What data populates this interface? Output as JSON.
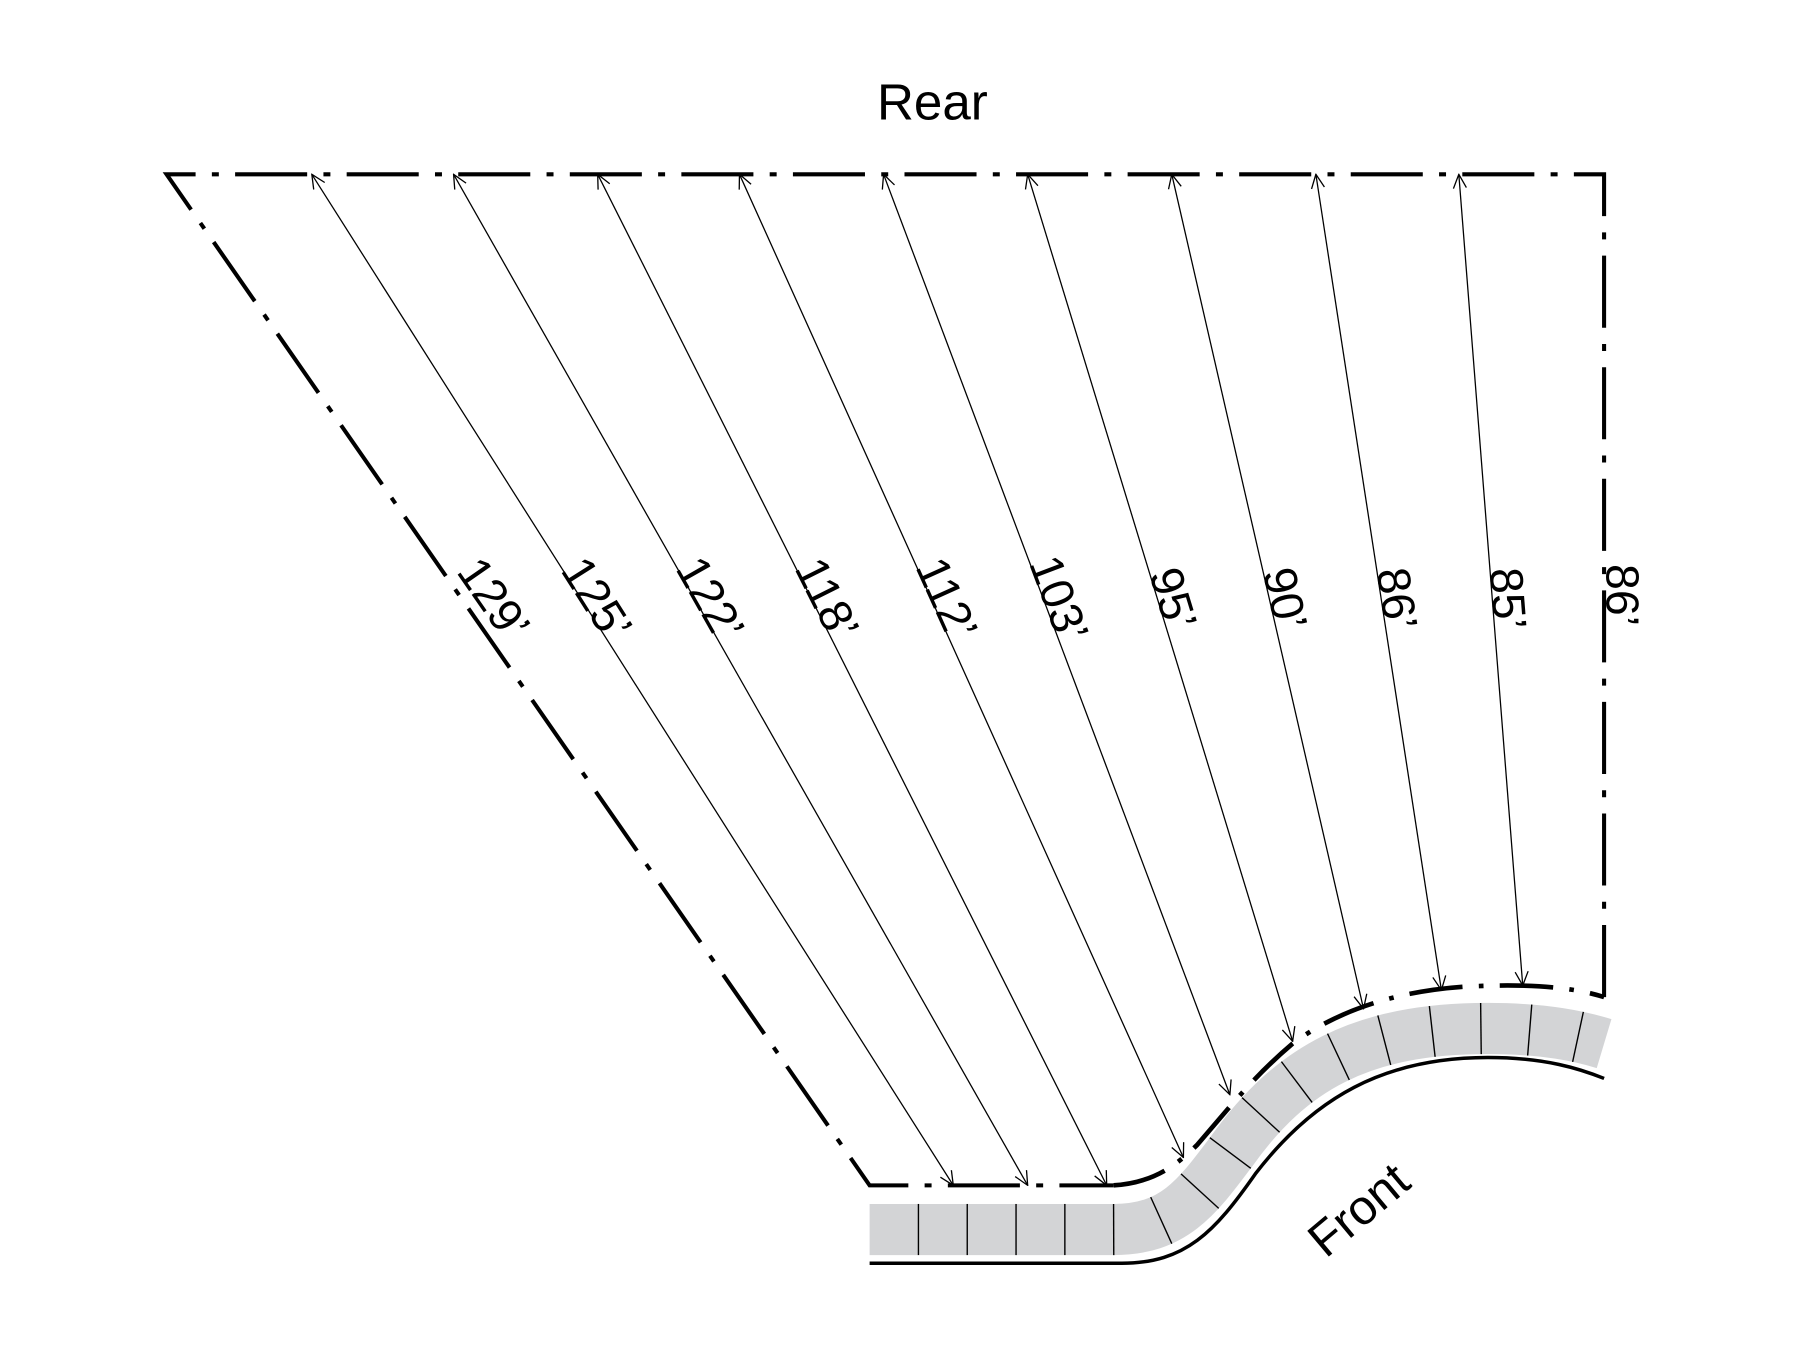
{
  "labels": {
    "rear": "Rear",
    "front": "Front"
  },
  "colors": {
    "line": "#000000",
    "road_fill": "#d3d4d6"
  },
  "dimensions": [
    {
      "label": "129’"
    },
    {
      "label": "125’"
    },
    {
      "label": "122’"
    },
    {
      "label": "118’"
    },
    {
      "label": "112’"
    },
    {
      "label": "103’"
    },
    {
      "label": "95’"
    },
    {
      "label": "90’"
    },
    {
      "label": "86’"
    },
    {
      "label": "85’"
    }
  ],
  "right_side": {
    "label": "86’"
  }
}
